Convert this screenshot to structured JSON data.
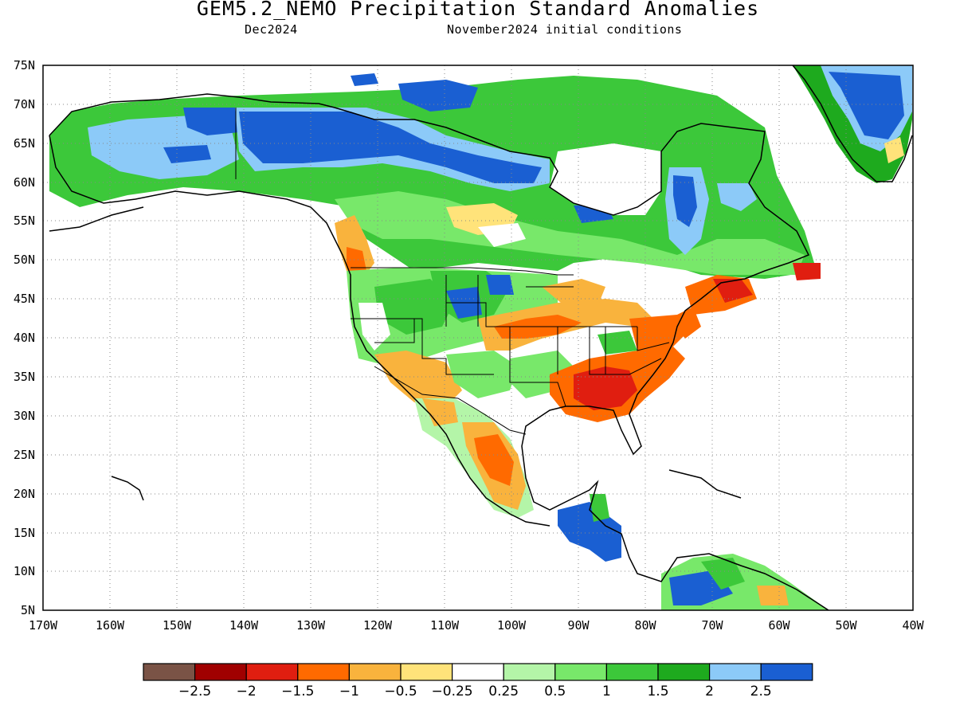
{
  "title": "GEM5.2_NEMO Precipitation Standard Anomalies",
  "valid_month": "Dec2024",
  "initial_conditions": "November2024 initial conditions",
  "map": {
    "lon_range": [
      -170,
      -40
    ],
    "lat_range": [
      5,
      75
    ],
    "lat_ticks": [
      "5N",
      "10N",
      "15N",
      "20N",
      "25N",
      "30N",
      "35N",
      "40N",
      "45N",
      "50N",
      "55N",
      "60N",
      "65N",
      "70N",
      "75N"
    ],
    "lon_ticks": [
      "170W",
      "160W",
      "150W",
      "140W",
      "130W",
      "120W",
      "110W",
      "100W",
      "90W",
      "80W",
      "70W",
      "60W",
      "50W",
      "40W"
    ],
    "gridlines": "dotted"
  },
  "colorbar": {
    "colors": [
      "#7a5346",
      "#a00000",
      "#e01e10",
      "#ff6a00",
      "#f9b33d",
      "#ffe37a",
      "#ffffff",
      "#b4f5a8",
      "#78e86a",
      "#3cc83a",
      "#1eaa1e",
      "#8ccaf8",
      "#1a5fd2"
    ],
    "labels": [
      "-2.5",
      "-2",
      "-1.5",
      "-1",
      "-0.5",
      "-0.25",
      "0.25",
      "0.5",
      "1",
      "1.5",
      "2",
      "2.5"
    ]
  }
}
